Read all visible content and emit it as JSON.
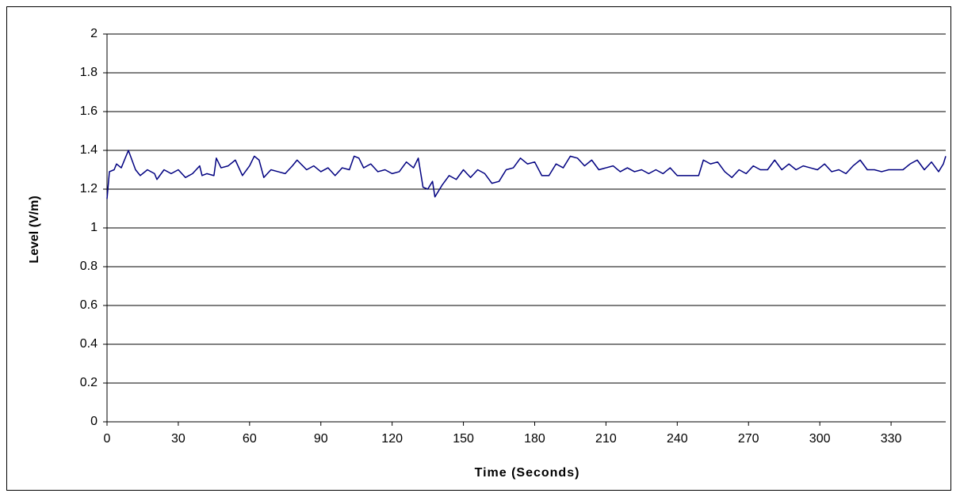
{
  "chart_data": {
    "type": "line",
    "xlabel": "Time (Seconds)",
    "ylabel": "Level (V/m)",
    "x": [
      0,
      1,
      3,
      4,
      6,
      9,
      12,
      14,
      17,
      20,
      21,
      24,
      27,
      30,
      33,
      36,
      39,
      40,
      42,
      45,
      46,
      48,
      51,
      54,
      57,
      60,
      62,
      64,
      66,
      69,
      72,
      75,
      78,
      80,
      84,
      87,
      90,
      93,
      96,
      99,
      102,
      104,
      106,
      108,
      111,
      114,
      117,
      120,
      123,
      126,
      129,
      131,
      133,
      135,
      137,
      138,
      141,
      144,
      147,
      150,
      153,
      156,
      159,
      162,
      165,
      168,
      171,
      174,
      177,
      180,
      183,
      186,
      189,
      192,
      195,
      198,
      201,
      204,
      207,
      210,
      213,
      216,
      219,
      222,
      225,
      228,
      231,
      234,
      237,
      240,
      243,
      246,
      249,
      251,
      254,
      257,
      260,
      263,
      266,
      269,
      272,
      275,
      278,
      281,
      284,
      287,
      290,
      293,
      296,
      299,
      302,
      305,
      308,
      311,
      314,
      317,
      320,
      323,
      326,
      329,
      332,
      335,
      338,
      341,
      344,
      347,
      350,
      352,
      353
    ],
    "series": [
      {
        "color": "#000080",
        "values": [
          1.15,
          1.29,
          1.3,
          1.33,
          1.31,
          1.4,
          1.3,
          1.27,
          1.3,
          1.28,
          1.25,
          1.3,
          1.28,
          1.3,
          1.26,
          1.28,
          1.32,
          1.27,
          1.28,
          1.27,
          1.36,
          1.31,
          1.32,
          1.35,
          1.27,
          1.32,
          1.37,
          1.35,
          1.26,
          1.3,
          1.29,
          1.28,
          1.32,
          1.35,
          1.3,
          1.32,
          1.29,
          1.31,
          1.27,
          1.31,
          1.3,
          1.37,
          1.36,
          1.31,
          1.33,
          1.29,
          1.3,
          1.28,
          1.29,
          1.34,
          1.31,
          1.36,
          1.21,
          1.2,
          1.24,
          1.16,
          1.22,
          1.27,
          1.25,
          1.3,
          1.26,
          1.3,
          1.28,
          1.23,
          1.24,
          1.3,
          1.31,
          1.36,
          1.33,
          1.34,
          1.27,
          1.27,
          1.33,
          1.31,
          1.37,
          1.36,
          1.32,
          1.35,
          1.3,
          1.31,
          1.32,
          1.29,
          1.31,
          1.29,
          1.3,
          1.28,
          1.3,
          1.28,
          1.31,
          1.27,
          1.27,
          1.27,
          1.27,
          1.35,
          1.33,
          1.34,
          1.29,
          1.26,
          1.3,
          1.28,
          1.32,
          1.3,
          1.3,
          1.35,
          1.3,
          1.33,
          1.3,
          1.32,
          1.31,
          1.3,
          1.33,
          1.29,
          1.3,
          1.28,
          1.32,
          1.35,
          1.3,
          1.3,
          1.29,
          1.3,
          1.3,
          1.3,
          1.33,
          1.35,
          1.3,
          1.34,
          1.29,
          1.33,
          1.37
        ]
      }
    ],
    "xlim": [
      0,
      353
    ],
    "xticks": [
      0,
      30,
      60,
      90,
      120,
      150,
      180,
      210,
      240,
      270,
      300,
      330
    ],
    "ylim": [
      0,
      2
    ],
    "yticks": [
      0,
      0.2,
      0.4,
      0.6,
      0.8,
      1,
      1.2,
      1.4,
      1.6,
      1.8,
      2
    ],
    "grid": true
  }
}
